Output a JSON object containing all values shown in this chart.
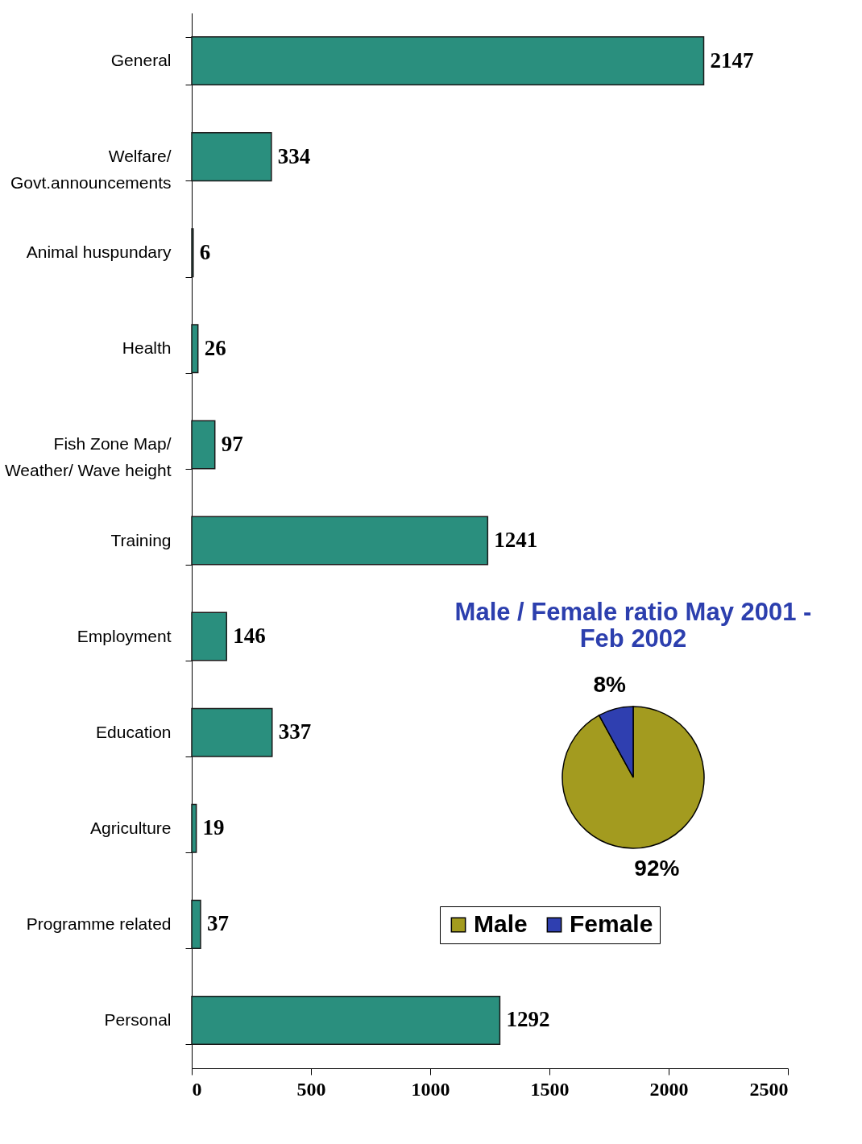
{
  "chart_data": [
    {
      "type": "bar",
      "orientation": "horizontal",
      "categories": [
        "General",
        "Welfare/\nGovt.announcements",
        "Animal huspundary",
        "Health",
        "Fish Zone Map/\nWeather/ Wave height",
        "Training",
        "Employment",
        "Education",
        "Agriculture",
        "Programme related",
        "Personal"
      ],
      "values": [
        2147,
        334,
        6,
        26,
        97,
        1241,
        146,
        337,
        19,
        37,
        1292
      ],
      "color": "#2a8f7e",
      "data_labels": true,
      "xlim": [
        0,
        2500
      ],
      "xticks": [
        0,
        500,
        1000,
        1500,
        2000,
        2500
      ],
      "grid": false
    },
    {
      "type": "pie",
      "title": "Male / Female ratio May 2001 - Feb 2002",
      "categories": [
        "Male",
        "Female"
      ],
      "values": [
        92,
        8
      ],
      "colors": [
        "#a39b1f",
        "#2f3fb0"
      ],
      "value_labels": [
        "92%",
        "8%"
      ],
      "legend": "bottom"
    }
  ]
}
